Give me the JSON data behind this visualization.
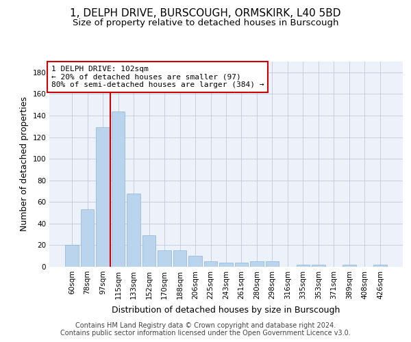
{
  "title": "1, DELPH DRIVE, BURSCOUGH, ORMSKIRK, L40 5BD",
  "subtitle": "Size of property relative to detached houses in Burscough",
  "xlabel": "Distribution of detached houses by size in Burscough",
  "ylabel": "Number of detached properties",
  "categories": [
    "60sqm",
    "78sqm",
    "97sqm",
    "115sqm",
    "133sqm",
    "152sqm",
    "170sqm",
    "188sqm",
    "206sqm",
    "225sqm",
    "243sqm",
    "261sqm",
    "280sqm",
    "298sqm",
    "316sqm",
    "335sqm",
    "353sqm",
    "371sqm",
    "389sqm",
    "408sqm",
    "426sqm"
  ],
  "values": [
    20,
    53,
    129,
    144,
    68,
    29,
    15,
    15,
    10,
    5,
    4,
    4,
    5,
    5,
    0,
    2,
    2,
    0,
    2,
    0,
    2
  ],
  "bar_color": "#bad4ee",
  "bar_edge_color": "#8ab4d8",
  "ylim": [
    0,
    190
  ],
  "yticks": [
    0,
    20,
    40,
    60,
    80,
    100,
    120,
    140,
    160,
    180
  ],
  "property_label": "1 DELPH DRIVE: 102sqm",
  "annotation_line1": "← 20% of detached houses are smaller (97)",
  "annotation_line2": "80% of semi-detached houses are larger (384) →",
  "vline_position": 2.5,
  "annotation_box_color": "#ffffff",
  "annotation_border_color": "#cc0000",
  "vline_color": "#cc0000",
  "footer_line1": "Contains HM Land Registry data © Crown copyright and database right 2024.",
  "footer_line2": "Contains public sector information licensed under the Open Government Licence v3.0.",
  "title_fontsize": 11,
  "subtitle_fontsize": 9.5,
  "axis_label_fontsize": 9,
  "tick_fontsize": 7.5,
  "footer_fontsize": 7,
  "background_color": "#edf2fa"
}
